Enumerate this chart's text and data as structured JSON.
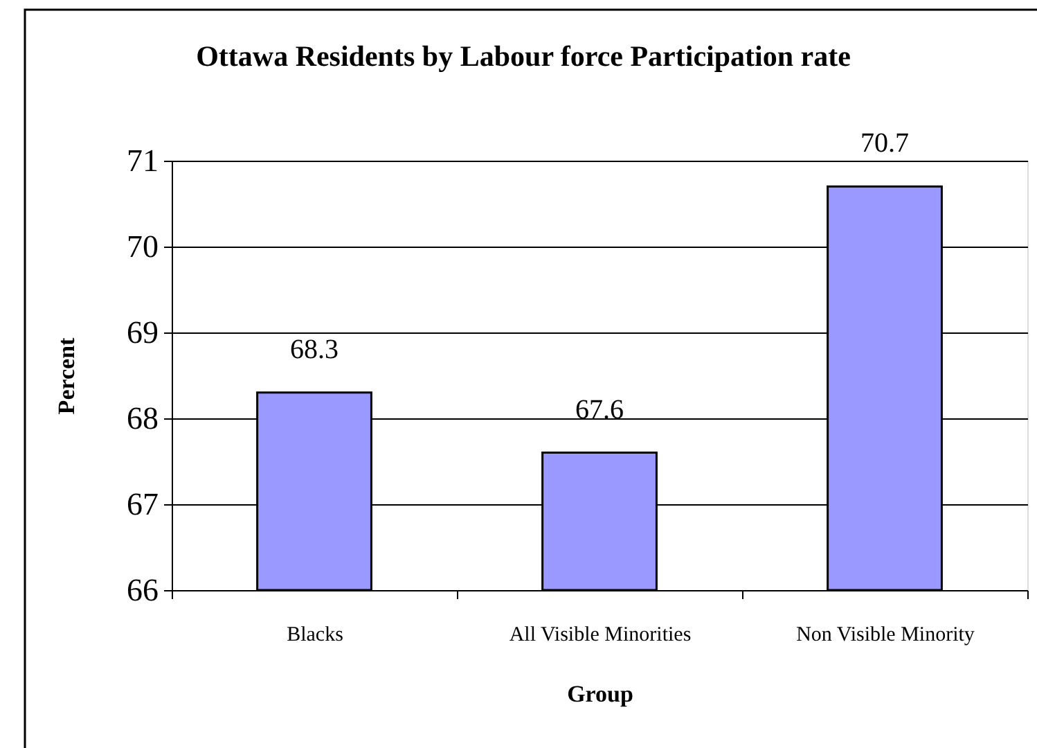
{
  "chart_data": {
    "type": "bar",
    "title": "Ottawa Residents by Labour force Participation rate",
    "xlabel": "Group",
    "ylabel": "Percent",
    "categories": [
      "Blacks",
      "All Visible Minorities",
      "Non Visible Minority"
    ],
    "values": [
      68.3,
      67.6,
      70.7
    ],
    "color": "#9999ff",
    "ylim": [
      66,
      71
    ],
    "yticks": [
      66,
      67,
      68,
      69,
      70,
      71
    ],
    "grid": "y",
    "data_labels": true
  }
}
